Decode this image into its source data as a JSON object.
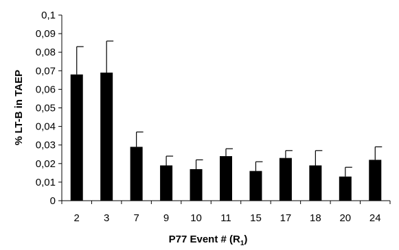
{
  "chart_data": {
    "type": "bar",
    "title": "",
    "xlabel": "P77 Event # (R",
    "xlabel_subscript": "1",
    "xlabel_suffix": ")",
    "ylabel": "% LT-B in TAEP",
    "categories": [
      "2",
      "3",
      "7",
      "9",
      "10",
      "11",
      "15",
      "17",
      "18",
      "20",
      "24"
    ],
    "values": [
      0.068,
      0.069,
      0.029,
      0.019,
      0.017,
      0.024,
      0.016,
      0.023,
      0.019,
      0.013,
      0.022
    ],
    "error_upper": [
      0.083,
      0.086,
      0.037,
      0.024,
      0.022,
      0.028,
      0.021,
      0.027,
      0.027,
      0.018,
      0.029
    ],
    "ylim": [
      0,
      0.1
    ],
    "yticks": [
      "0",
      "0,01",
      "0,02",
      "0,03",
      "0,04",
      "0,05",
      "0,06",
      "0,07",
      "0,08",
      "0,09",
      "0,1"
    ],
    "grid": false,
    "legend": "none",
    "bar_color": "#000000"
  }
}
